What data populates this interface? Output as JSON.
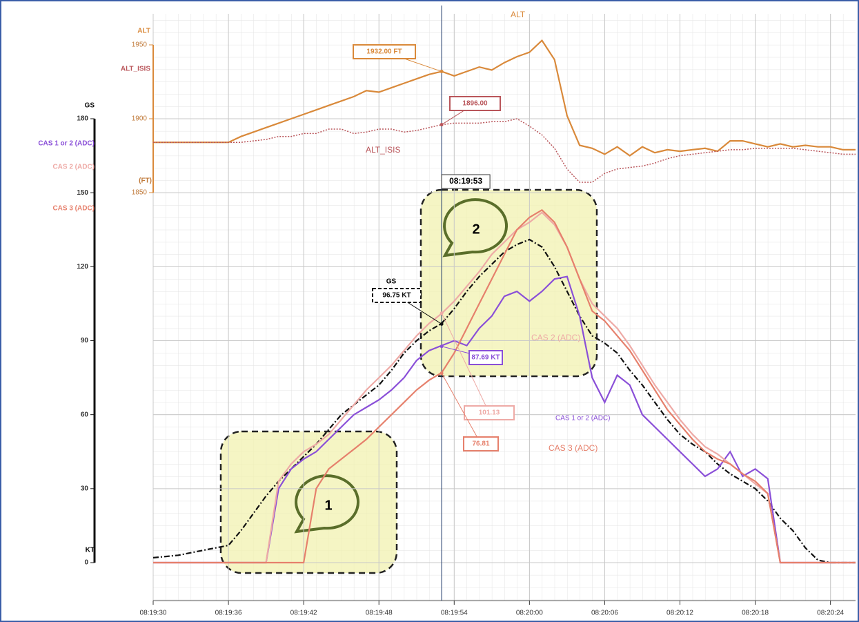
{
  "chart_data": {
    "type": "line",
    "x": [
      "08:19:30",
      "08:19:31",
      "08:19:32",
      "08:19:33",
      "08:19:34",
      "08:19:35",
      "08:19:36",
      "08:19:37",
      "08:19:38",
      "08:19:39",
      "08:19:40",
      "08:19:41",
      "08:19:42",
      "08:19:43",
      "08:19:44",
      "08:19:45",
      "08:19:46",
      "08:19:47",
      "08:19:48",
      "08:19:49",
      "08:19:50",
      "08:19:51",
      "08:19:52",
      "08:19:53",
      "08:19:54",
      "08:19:55",
      "08:19:56",
      "08:19:57",
      "08:19:58",
      "08:19:59",
      "08:20:00",
      "08:20:01",
      "08:20:02",
      "08:20:03",
      "08:20:04",
      "08:20:05",
      "08:20:06",
      "08:20:07",
      "08:20:08",
      "08:20:09",
      "08:20:10",
      "08:20:11",
      "08:20:12",
      "08:20:13",
      "08:20:14",
      "08:20:15",
      "08:20:16",
      "08:20:17",
      "08:20:18",
      "08:20:19",
      "08:20:20",
      "08:20:21",
      "08:20:22",
      "08:20:23",
      "08:20:24",
      "08:20:25",
      "08:20:26"
    ],
    "xlim": [
      "08:19:30",
      "08:20:26"
    ],
    "xticks": [
      "08:19:30",
      "08:19:36",
      "08:19:42",
      "08:19:48",
      "08:19:54",
      "08:20:00",
      "08:20:06",
      "08:20:12",
      "08:20:18",
      "08:20:24"
    ],
    "ylim": [
      0,
      180
    ],
    "yticks": [
      0,
      30,
      60,
      90,
      120,
      150,
      180
    ],
    "y_unit": "KT",
    "y2lim": [
      1850,
      1950
    ],
    "y2ticks": [
      1850,
      1900,
      1950
    ],
    "y2_unit": "(FT)",
    "grid": true,
    "cursor_x": "08:19:53",
    "callouts": [
      "1",
      "2"
    ],
    "series": [
      {
        "name": "ALT",
        "color": "#d9893a",
        "axis": "y2",
        "style": "solid",
        "cursor_value": 1932,
        "cursor_label": "1932.00 FT",
        "values": [
          1884,
          1884,
          1884,
          1884,
          1884,
          1884,
          1884,
          1888,
          1891,
          1894,
          1897,
          1900,
          1903,
          1906,
          1909,
          1912,
          1915,
          1919,
          1918,
          1921,
          1924,
          1927,
          1930,
          1932,
          1929,
          1932,
          1935,
          1933,
          1938,
          1942,
          1945,
          1953,
          1940,
          1902,
          1882,
          1880,
          1876,
          1881,
          1875,
          1881,
          1877,
          1879,
          1878,
          1879,
          1880,
          1878,
          1885,
          1885,
          1883,
          1881,
          1883,
          1881,
          1882,
          1881,
          1881,
          1879,
          1879
        ]
      },
      {
        "name": "ALT_ISIS",
        "color": "#b9555a",
        "axis": "y2",
        "style": "dotted",
        "cursor_value": 1896,
        "cursor_label": "1896.00",
        "values": [
          1884,
          1884,
          1884,
          1884,
          1884,
          1884,
          1884,
          1884,
          1885,
          1886,
          1888,
          1888,
          1890,
          1890,
          1893,
          1893,
          1890,
          1891,
          1893,
          1893,
          1891,
          1892,
          1894,
          1896,
          1897,
          1897,
          1897,
          1898,
          1898,
          1900,
          1895,
          1889,
          1880,
          1866,
          1857,
          1857,
          1863,
          1866,
          1867,
          1868,
          1870,
          1873,
          1875,
          1876,
          1877,
          1878,
          1879,
          1879,
          1880,
          1880,
          1880,
          1880,
          1879,
          1878,
          1877,
          1876,
          1876
        ]
      },
      {
        "name": "GS",
        "color": "#111111",
        "style": "dashdot",
        "cursor_value": 96.75,
        "cursor_label": "96.75 KT",
        "values": [
          2,
          2.5,
          3,
          4,
          5,
          6,
          7,
          13,
          20,
          27,
          33,
          38,
          43,
          48,
          54,
          60,
          64,
          68,
          72,
          78,
          85,
          90,
          94,
          97,
          103,
          110,
          116,
          121,
          126,
          129,
          131,
          128,
          120,
          110,
          100,
          92,
          89,
          85,
          78,
          72,
          65,
          58,
          52,
          48,
          45,
          40,
          36,
          33,
          30,
          25,
          18,
          13,
          6,
          1,
          0,
          0,
          0
        ]
      },
      {
        "name": "CAS 1 or 2 (ADC)",
        "color": "#8a4fd8",
        "style": "solid",
        "cursor_value": 87.69,
        "cursor_label": "87.69 KT",
        "values": [
          0,
          0,
          0,
          0,
          0,
          0,
          0,
          0,
          0,
          0,
          30,
          38,
          42,
          45,
          50,
          55,
          60,
          63,
          66,
          70,
          75,
          82,
          86,
          88,
          90,
          88,
          95,
          100,
          108,
          110,
          106,
          110,
          115,
          116,
          100,
          75,
          65,
          76,
          72,
          60,
          55,
          50,
          45,
          40,
          35,
          38,
          45,
          35,
          38,
          34,
          0,
          0,
          0,
          0,
          0,
          0,
          0
        ]
      },
      {
        "name": "CAS 2 (ADC)",
        "color": "#eeaaa6",
        "style": "solid",
        "cursor_value": 101.13,
        "cursor_label": "101.13",
        "values": [
          0,
          0,
          0,
          0,
          0,
          0,
          0,
          0,
          0,
          0,
          33,
          40,
          45,
          48,
          52,
          58,
          64,
          70,
          75,
          80,
          86,
          92,
          97,
          101,
          106,
          112,
          118,
          125,
          130,
          135,
          138,
          142,
          137,
          128,
          115,
          105,
          100,
          95,
          88,
          80,
          72,
          65,
          58,
          52,
          47,
          44,
          40,
          36,
          32,
          28,
          0,
          0,
          0,
          0,
          0,
          0,
          0
        ]
      },
      {
        "name": "CAS 3 (ADC)",
        "color": "#e6806c",
        "style": "solid",
        "cursor_value": 76.81,
        "cursor_label": "76.81",
        "values": [
          0,
          0,
          0,
          0,
          0,
          0,
          0,
          0,
          0,
          0,
          0,
          0,
          0,
          30,
          38,
          42,
          46,
          50,
          55,
          60,
          65,
          70,
          74,
          77,
          85,
          95,
          105,
          115,
          125,
          135,
          140,
          143,
          138,
          128,
          115,
          102,
          98,
          92,
          86,
          78,
          70,
          62,
          56,
          50,
          45,
          42,
          40,
          36,
          33,
          28,
          0,
          0,
          0,
          0,
          0,
          0,
          0
        ]
      }
    ]
  }
}
